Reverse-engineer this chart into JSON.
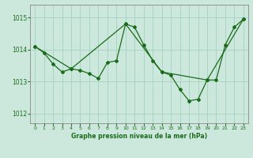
{
  "title": "Graphe pression niveau de la mer (hPa)",
  "background_color": "#cce8dc",
  "line_color": "#1a6b1a",
  "grid_color": "#aad4c4",
  "xlim": [
    -0.5,
    23.5
  ],
  "ylim": [
    1011.7,
    1015.4
  ],
  "yticks": [
    1012,
    1013,
    1014,
    1015
  ],
  "xticks": [
    0,
    1,
    2,
    3,
    4,
    5,
    6,
    7,
    8,
    9,
    10,
    11,
    12,
    13,
    14,
    15,
    16,
    17,
    18,
    19,
    20,
    21,
    22,
    23
  ],
  "series1": {
    "x": [
      0,
      1,
      2,
      3,
      4,
      5,
      6,
      7,
      8,
      9,
      10,
      11,
      12,
      13,
      14,
      15,
      16,
      17,
      18,
      19,
      20,
      21,
      22,
      23
    ],
    "y": [
      1014.1,
      1013.9,
      1013.55,
      1013.3,
      1013.4,
      1013.35,
      1013.25,
      1013.1,
      1013.6,
      1013.65,
      1014.8,
      1014.7,
      1014.15,
      1013.65,
      1013.3,
      1013.2,
      1012.75,
      1012.4,
      1012.45,
      1013.05,
      1013.05,
      1014.15,
      1014.7,
      1014.95
    ]
  },
  "series2": {
    "x": [
      0,
      4,
      10,
      14,
      19,
      23
    ],
    "y": [
      1014.1,
      1013.4,
      1014.8,
      1013.3,
      1013.05,
      1014.95
    ]
  },
  "ylabel_fontsize": 5.5,
  "xlabel_fontsize": 5.5,
  "title_fontsize": 5.5
}
